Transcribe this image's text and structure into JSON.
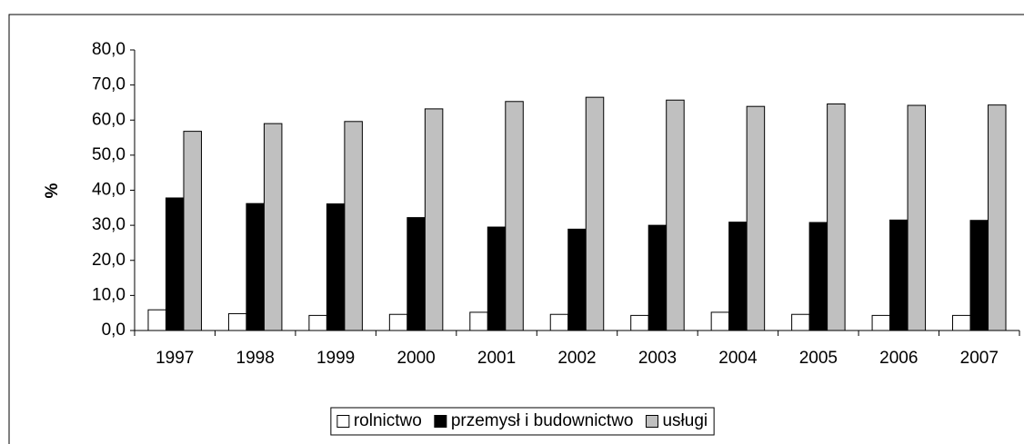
{
  "chart_data": {
    "type": "bar",
    "y_label": "%",
    "categories": [
      "1997",
      "1998",
      "1999",
      "2000",
      "2001",
      "2002",
      "2003",
      "2004",
      "2005",
      "2006",
      "2007"
    ],
    "series": [
      {
        "name": "rolnictwo",
        "color": "#ffffff",
        "values": [
          5.9,
          4.8,
          4.3,
          4.6,
          5.2,
          4.6,
          4.3,
          5.2,
          4.6,
          4.3,
          4.3
        ]
      },
      {
        "name": "przemysł i budownictwo",
        "color": "#000000",
        "values": [
          37.8,
          36.2,
          36.1,
          32.2,
          29.5,
          28.9,
          30.0,
          30.9,
          30.8,
          31.5,
          31.4
        ]
      },
      {
        "name": "usługi",
        "color": "#c0c0c0",
        "values": [
          56.8,
          59.0,
          59.6,
          63.2,
          65.3,
          66.5,
          65.7,
          63.9,
          64.6,
          64.2,
          64.3
        ]
      }
    ],
    "ylim": [
      0,
      80
    ],
    "yticks": [
      {
        "value": 0,
        "label": "0,0"
      },
      {
        "value": 10,
        "label": "10,0"
      },
      {
        "value": 20,
        "label": "20,0"
      },
      {
        "value": 30,
        "label": "30,0"
      },
      {
        "value": 40,
        "label": "40,0"
      },
      {
        "value": 50,
        "label": "50,0"
      },
      {
        "value": 60,
        "label": "60,0"
      },
      {
        "value": 70,
        "label": "70,0"
      },
      {
        "value": 80,
        "label": "80,0"
      }
    ],
    "legend": "bottom"
  }
}
